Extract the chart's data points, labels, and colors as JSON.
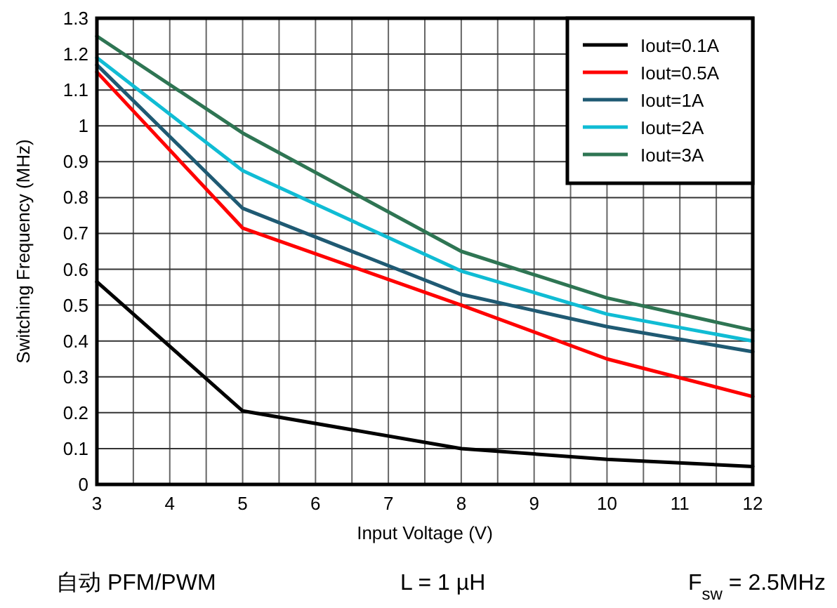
{
  "chart_data": {
    "type": "line",
    "xlabel": "Input Voltage (V)",
    "ylabel": "Switching Frequency (MHz)",
    "x": [
      3,
      5,
      8,
      10,
      12
    ],
    "series": [
      {
        "name": "Iout=0.1A",
        "color": "#000000",
        "values": [
          0.565,
          0.205,
          0.1,
          0.07,
          0.05
        ]
      },
      {
        "name": "Iout=0.5A",
        "color": "#ff0000",
        "values": [
          1.15,
          0.715,
          0.5,
          0.35,
          0.245
        ]
      },
      {
        "name": "Iout=1A",
        "color": "#1f5a73",
        "values": [
          1.17,
          0.77,
          0.53,
          0.44,
          0.37
        ]
      },
      {
        "name": "Iout=2A",
        "color": "#10bcd4",
        "values": [
          1.19,
          0.875,
          0.595,
          0.475,
          0.4
        ]
      },
      {
        "name": "Iout=3A",
        "color": "#2e7553",
        "values": [
          1.25,
          0.98,
          0.65,
          0.52,
          0.43
        ]
      }
    ],
    "xlim": [
      3,
      12
    ],
    "xticks": [
      3,
      {
        "value": 3.5,
        "label": null
      },
      4,
      {
        "value": 4.5,
        "label": null
      },
      5,
      {
        "value": 5.5,
        "label": null
      },
      6,
      {
        "value": 6.5,
        "label": null
      },
      7,
      {
        "value": 7.5,
        "label": null
      },
      8,
      {
        "value": 8.5,
        "label": null
      },
      9,
      {
        "value": 9.5,
        "label": null
      },
      10,
      {
        "value": 10.5,
        "label": null
      },
      11,
      {
        "value": 11.5,
        "label": null
      },
      12
    ],
    "ylim": [
      0,
      1.3
    ],
    "yticks": [
      0,
      0.1,
      0.2,
      0.3,
      0.4,
      0.5,
      0.6,
      0.7,
      0.8,
      0.9,
      1,
      1.1,
      1.2,
      1.3
    ],
    "grid": true,
    "legend": "top right",
    "marker": "none",
    "line_style": "solid",
    "annotations": [
      "自动 PFM/PWM",
      "L = 1 µH",
      "F$_{sw}$ = 2.5MHz"
    ]
  }
}
